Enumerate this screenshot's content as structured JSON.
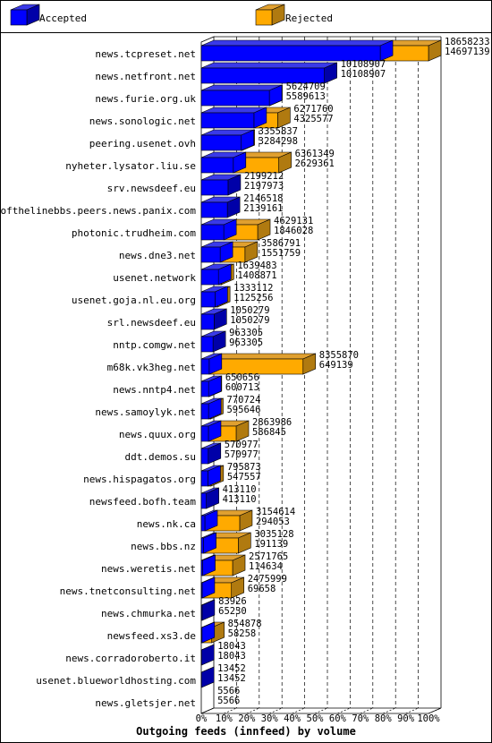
{
  "colors": {
    "accepted": "#0000ff",
    "accepted_top": "#3a3ae8",
    "accepted_side": "#0000a8",
    "rejected": "#ffaa00",
    "rejected_top": "#e0a030",
    "rejected_side": "#b07a10"
  },
  "legend": {
    "accepted": "Accepted",
    "rejected": "Rejected"
  },
  "chart_data": {
    "type": "bar",
    "orientation": "horizontal",
    "stacked": true,
    "title": "Outgoing feeds (innfeed) by volume",
    "x_ticks": [
      "0%",
      "10%",
      "20%",
      "30%",
      "40%",
      "50%",
      "60%",
      "70%",
      "80%",
      "90%",
      "100%"
    ],
    "xlim": [
      0,
      100
    ],
    "grid": true,
    "legend_position": "top",
    "categories": [
      "news.tcpreset.net",
      "news.netfront.net",
      "news.furie.org.uk",
      "news.sonologic.net",
      "peering.usenet.ovh",
      "nyheter.lysator.liu.se",
      "srv.newsdeef.eu",
      "endofthelinebbs.peers.news.panix.com",
      "photonic.trudheim.com",
      "news.dne3.net",
      "usenet.network",
      "usenet.goja.nl.eu.org",
      "srl.newsdeef.eu",
      "nntp.comgw.net",
      "m68k.vk3heg.net",
      "news.nntp4.net",
      "news.samoylyk.net",
      "news.quux.org",
      "ddt.demos.su",
      "news.hispagatos.org",
      "newsfeed.bofh.team",
      "news.nk.ca",
      "news.bbs.nz",
      "news.weretis.net",
      "news.tnetconsulting.net",
      "news.chmurka.net",
      "newsfeed.xs3.de",
      "news.corradoroberto.it",
      "usenet.blueworldhosting.com",
      "news.gletsjer.net"
    ],
    "totals": [
      "18658233",
      "10108907",
      "5624709",
      "6271760",
      "3355837",
      "6361349",
      "2199212",
      "2146518",
      "4629131",
      "3586791",
      "1639483",
      "1333112",
      "1050279",
      "963305",
      "8355870",
      "650656",
      "770724",
      "2863986",
      "570977",
      "795873",
      "413110",
      "3154614",
      "3035128",
      "2571765",
      "2475999",
      "83926",
      "854878",
      "18043",
      "13452",
      "5566"
    ],
    "accepted": [
      "14697139",
      "10108907",
      "5589613",
      "4325577",
      "3284298",
      "2629361",
      "2197973",
      "2139161",
      "1846028",
      "1551759",
      "1408871",
      "1125256",
      "1050279",
      "963305",
      "649139",
      "600713",
      "595646",
      "586845",
      "570977",
      "547557",
      "413110",
      "294053",
      "191139",
      "114634",
      "69658",
      "65230",
      "58258",
      "18043",
      "13452",
      "5566"
    ]
  }
}
